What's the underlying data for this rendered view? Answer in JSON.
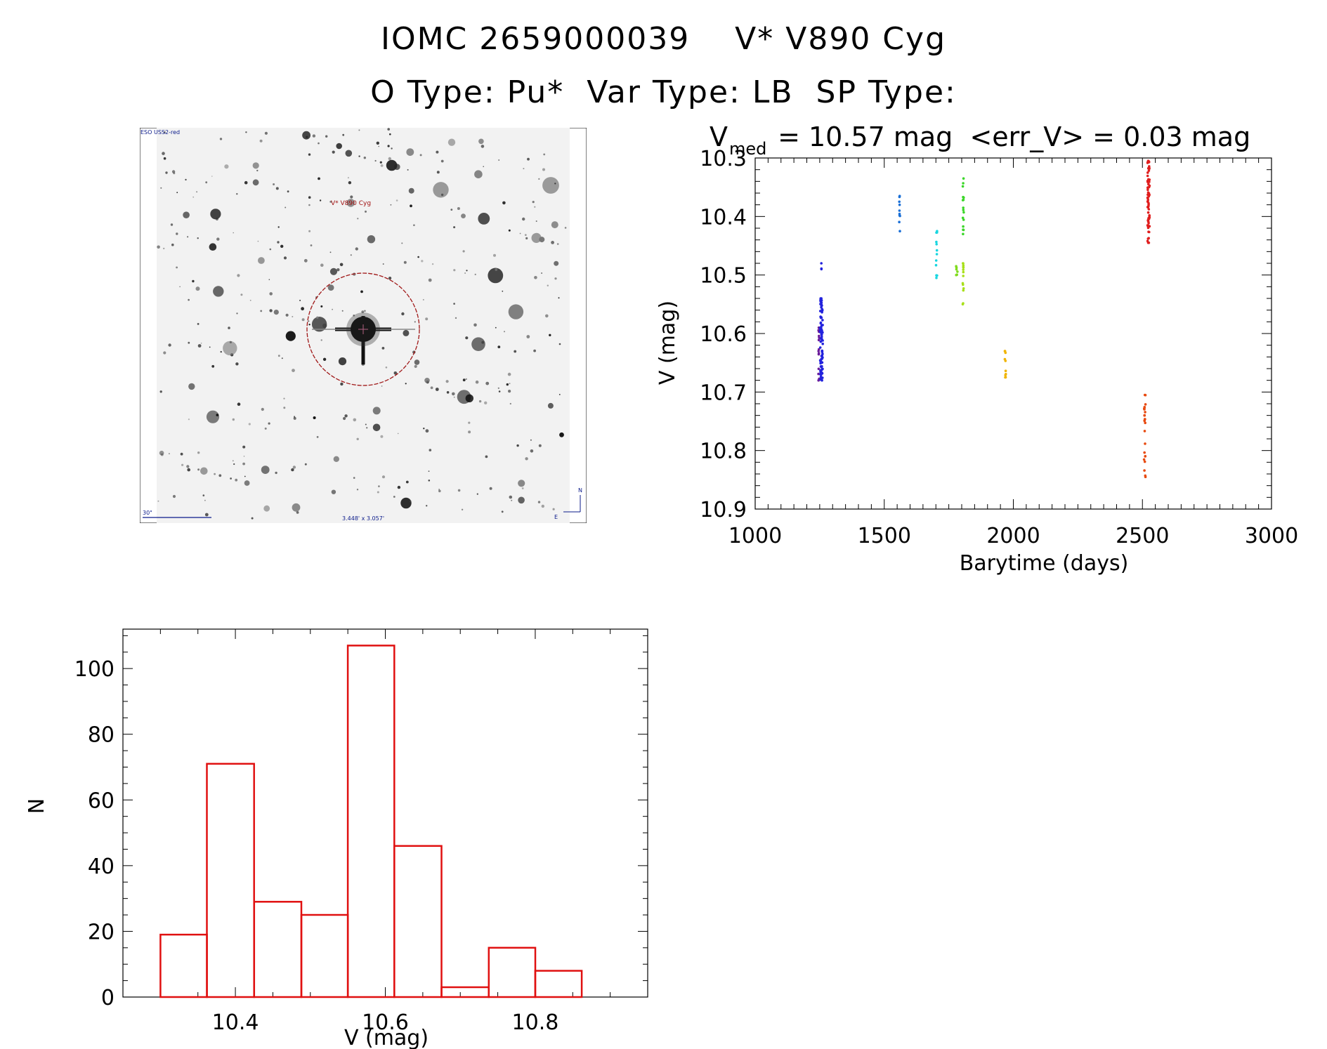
{
  "header": {
    "title_line1": "IOMC 2659000039    V* V890 Cyg",
    "title_line2": "O Type: Pu*  Var Type: LB  SP Type:"
  },
  "image_panel": {
    "survey_label": "ESO USS2-red",
    "target_label": "V* V890 Cyg",
    "scale_label": "30\"",
    "size_label": "3.448' x 3.057'",
    "north_label": "N",
    "east_label": "E"
  },
  "chart_data": [
    {
      "type": "scatter",
      "title_main": "V",
      "title_sub": "med",
      "title_rest": " = 10.57 mag  <err_V> = 0.03 mag",
      "xlabel": "Barytime (days)",
      "ylabel": "V (mag)",
      "xlim": [
        1000,
        3000
      ],
      "ylim": [
        10.3,
        10.9
      ],
      "y_inverted": true,
      "xticks": [
        1000,
        1500,
        2000,
        2500,
        3000
      ],
      "yticks": [
        10.3,
        10.4,
        10.5,
        10.6,
        10.7,
        10.8,
        10.9
      ],
      "clusters": [
        {
          "color": "#6a1b9a",
          "x": [
            1245,
            1248
          ],
          "y_min": 10.59,
          "y_max": 10.68,
          "n": 14
        },
        {
          "color": "#2222dd",
          "x": [
            1252,
            1262
          ],
          "y_min": 10.54,
          "y_max": 10.68,
          "n": 90
        },
        {
          "color": "#2222dd",
          "x": [
            1256,
            1258
          ],
          "y_min": 10.48,
          "y_max": 10.49,
          "n": 3
        },
        {
          "color": "#1a6fd6",
          "x": [
            1558,
            1561
          ],
          "y_min": 10.365,
          "y_max": 10.425,
          "n": 10
        },
        {
          "color": "#19d6e0",
          "x": [
            1700,
            1705
          ],
          "y_min": 10.425,
          "y_max": 10.505,
          "n": 12
        },
        {
          "color": "#7fdc1c",
          "x": [
            1778,
            1784
          ],
          "y_min": 10.485,
          "y_max": 10.5,
          "n": 6
        },
        {
          "color": "#3cd62a",
          "x": [
            1804,
            1808
          ],
          "y_min": 10.335,
          "y_max": 10.43,
          "n": 16
        },
        {
          "color": "#a8e01a",
          "x": [
            1804,
            1808
          ],
          "y_min": 10.48,
          "y_max": 10.55,
          "n": 14
        },
        {
          "color": "#f0b400",
          "x": [
            1967,
            1971
          ],
          "y_min": 10.63,
          "y_max": 10.675,
          "n": 10
        },
        {
          "color": "#e01e1e",
          "x": [
            2520,
            2528
          ],
          "y_min": 10.305,
          "y_max": 10.445,
          "n": 70
        },
        {
          "color": "#e84a10",
          "x": [
            2506,
            2512
          ],
          "y_min": 10.705,
          "y_max": 10.845,
          "n": 24
        }
      ]
    },
    {
      "type": "bar",
      "xlabel": "V (mag)",
      "ylabel": "N",
      "xlim": [
        10.25,
        10.95
      ],
      "ylim": [
        0,
        112
      ],
      "xticks": [
        10.4,
        10.6,
        10.8
      ],
      "yticks": [
        0,
        20,
        40,
        60,
        80,
        100
      ],
      "bar_color": "#e01010",
      "bin_edges": [
        10.3,
        10.362,
        10.425,
        10.488,
        10.55,
        10.612,
        10.675,
        10.738,
        10.8,
        10.862
      ],
      "values": [
        19,
        71,
        29,
        25,
        107,
        46,
        3,
        15,
        8
      ]
    }
  ]
}
